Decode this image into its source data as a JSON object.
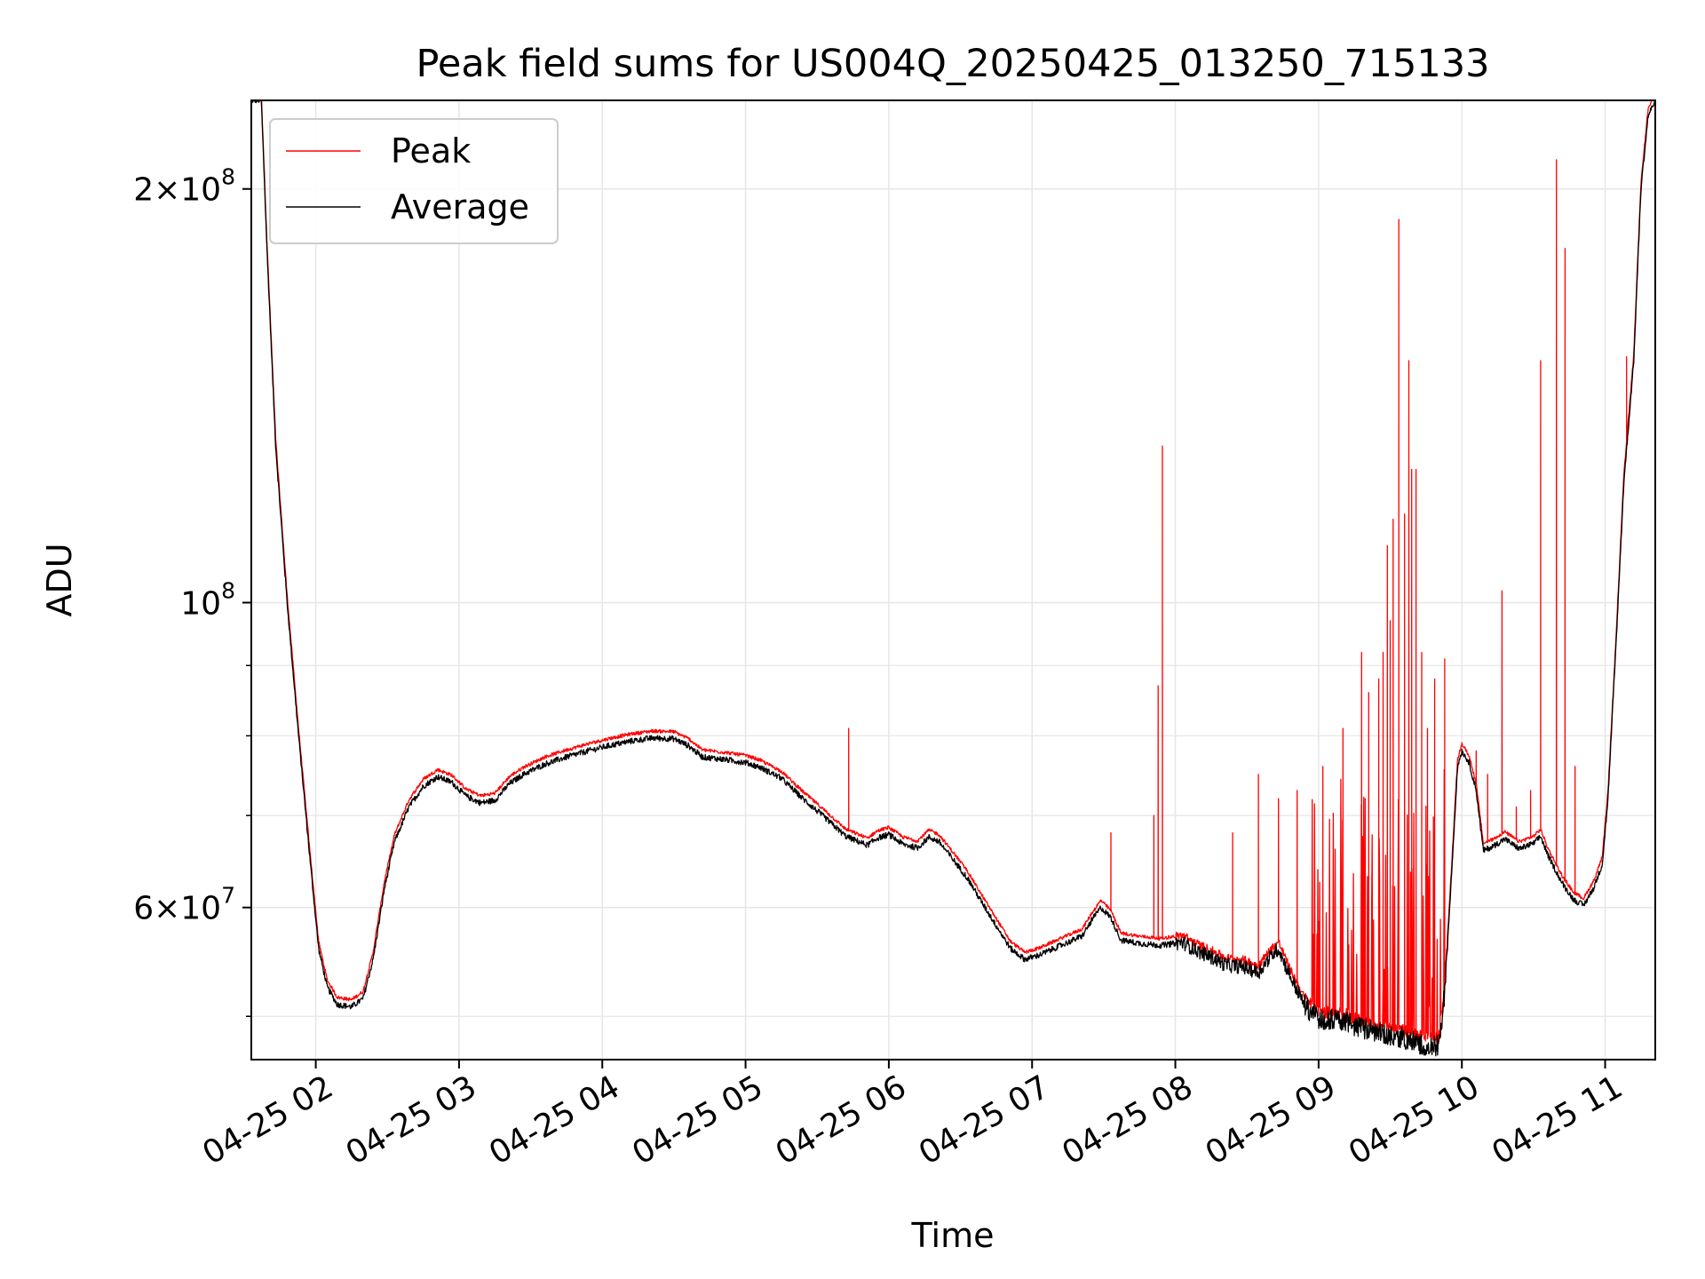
{
  "chart_data": {
    "type": "line",
    "title": "Peak field sums for US004Q_20250425_013250_715133",
    "xlabel": "Time",
    "ylabel": "ADU",
    "x_unit": "hour of 2025-04-25",
    "xlim": [
      1.55,
      11.35
    ],
    "ylim": [
      46500000,
      232000000
    ],
    "yscale": "log",
    "grid": true,
    "x_ticks": [
      {
        "value": 2,
        "label": "04-25 02"
      },
      {
        "value": 3,
        "label": "04-25 03"
      },
      {
        "value": 4,
        "label": "04-25 04"
      },
      {
        "value": 5,
        "label": "04-25 05"
      },
      {
        "value": 6,
        "label": "04-25 06"
      },
      {
        "value": 7,
        "label": "04-25 07"
      },
      {
        "value": 8,
        "label": "04-25 08"
      },
      {
        "value": 9,
        "label": "04-25 09"
      },
      {
        "value": 10,
        "label": "04-25 10"
      },
      {
        "value": 11,
        "label": "04-25 11"
      }
    ],
    "y_major_ticks": [
      {
        "value": 60000000,
        "base": "6",
        "exp": "7"
      },
      {
        "value": 100000000,
        "base": "10",
        "exp": "8"
      },
      {
        "value": 200000000,
        "base": "2",
        "exp": "8"
      }
    ],
    "y_minor_ticks": [
      50000000,
      70000000,
      80000000,
      90000000
    ],
    "legend": {
      "position": "upper-left",
      "entries": [
        "Peak",
        "Average"
      ]
    },
    "series": [
      {
        "name": "Average",
        "color": "#000000",
        "points": [
          [
            1.55,
            232000000
          ],
          [
            1.62,
            232000000
          ],
          [
            1.66,
            180000000
          ],
          [
            1.72,
            130000000
          ],
          [
            1.8,
            100000000
          ],
          [
            1.88,
            80000000
          ],
          [
            1.96,
            65000000
          ],
          [
            2.02,
            56000000
          ],
          [
            2.08,
            52500000
          ],
          [
            2.15,
            51000000
          ],
          [
            2.25,
            50800000
          ],
          [
            2.33,
            51500000
          ],
          [
            2.4,
            55000000
          ],
          [
            2.48,
            62000000
          ],
          [
            2.55,
            67000000
          ],
          [
            2.65,
            71000000
          ],
          [
            2.75,
            73500000
          ],
          [
            2.85,
            74700000
          ],
          [
            2.95,
            74000000
          ],
          [
            3.05,
            72300000
          ],
          [
            3.15,
            71500000
          ],
          [
            3.25,
            71800000
          ],
          [
            3.35,
            73800000
          ],
          [
            3.45,
            75000000
          ],
          [
            3.6,
            76300000
          ],
          [
            3.75,
            77200000
          ],
          [
            3.9,
            78000000
          ],
          [
            4.05,
            78700000
          ],
          [
            4.2,
            79300000
          ],
          [
            4.35,
            79700000
          ],
          [
            4.5,
            79600000
          ],
          [
            4.6,
            78700000
          ],
          [
            4.7,
            77200000
          ],
          [
            4.85,
            76900000
          ],
          [
            5.0,
            76500000
          ],
          [
            5.1,
            75900000
          ],
          [
            5.25,
            74500000
          ],
          [
            5.4,
            72000000
          ],
          [
            5.55,
            69800000
          ],
          [
            5.7,
            67600000
          ],
          [
            5.85,
            66600000
          ],
          [
            5.92,
            67400000
          ],
          [
            6.0,
            67800000
          ],
          [
            6.1,
            66700000
          ],
          [
            6.2,
            66300000
          ],
          [
            6.28,
            67500000
          ],
          [
            6.35,
            67000000
          ],
          [
            6.45,
            65000000
          ],
          [
            6.55,
            63000000
          ],
          [
            6.65,
            60500000
          ],
          [
            6.75,
            58200000
          ],
          [
            6.85,
            56000000
          ],
          [
            6.95,
            55000000
          ],
          [
            7.05,
            55400000
          ],
          [
            7.2,
            56300000
          ],
          [
            7.35,
            57200000
          ],
          [
            7.42,
            58800000
          ],
          [
            7.48,
            60000000
          ],
          [
            7.55,
            59000000
          ],
          [
            7.62,
            56800000
          ],
          [
            7.75,
            56500000
          ],
          [
            7.9,
            56300000
          ],
          [
            8.05,
            56600000
          ],
          [
            8.15,
            55800000
          ],
          [
            8.25,
            55200000
          ],
          [
            8.35,
            54500000
          ],
          [
            8.48,
            54300000
          ],
          [
            8.58,
            53800000
          ],
          [
            8.66,
            55200000
          ],
          [
            8.72,
            56000000
          ],
          [
            8.8,
            53500000
          ],
          [
            8.9,
            51000000
          ],
          [
            9.0,
            49700000
          ],
          [
            9.1,
            49800000
          ],
          [
            9.2,
            49500000
          ],
          [
            9.3,
            49000000
          ],
          [
            9.4,
            48800000
          ],
          [
            9.5,
            48500000
          ],
          [
            9.6,
            48200000
          ],
          [
            9.7,
            47800000
          ],
          [
            9.78,
            47500000
          ],
          [
            9.84,
            47600000
          ],
          [
            9.88,
            52000000
          ],
          [
            9.93,
            64000000
          ],
          [
            9.97,
            76000000
          ],
          [
            10.0,
            78000000
          ],
          [
            10.05,
            76500000
          ],
          [
            10.1,
            73000000
          ],
          [
            10.15,
            66000000
          ],
          [
            10.22,
            66500000
          ],
          [
            10.3,
            67300000
          ],
          [
            10.4,
            66200000
          ],
          [
            10.5,
            66800000
          ],
          [
            10.55,
            67600000
          ],
          [
            10.6,
            65500000
          ],
          [
            10.7,
            62500000
          ],
          [
            10.78,
            60800000
          ],
          [
            10.85,
            60200000
          ],
          [
            10.92,
            62000000
          ],
          [
            10.98,
            64500000
          ],
          [
            11.02,
            72000000
          ],
          [
            11.08,
            95000000
          ],
          [
            11.13,
            122000000
          ],
          [
            11.2,
            150000000
          ],
          [
            11.25,
            200000000
          ],
          [
            11.3,
            226000000
          ],
          [
            11.35,
            232000000
          ]
        ]
      },
      {
        "name": "Peak",
        "color": "#ff0000",
        "offset_factor": 1.012,
        "spikes": [
          [
            5.72,
            81000000
          ],
          [
            7.55,
            68000000
          ],
          [
            7.85,
            70000000
          ],
          [
            7.88,
            87000000
          ],
          [
            7.91,
            130000000
          ],
          [
            8.4,
            68000000
          ],
          [
            8.58,
            75000000
          ],
          [
            8.72,
            72000000
          ],
          [
            8.85,
            73000000
          ],
          [
            9.03,
            76000000
          ],
          [
            9.17,
            81000000
          ],
          [
            9.3,
            92000000
          ],
          [
            9.35,
            86000000
          ],
          [
            9.42,
            88000000
          ],
          [
            9.45,
            92000000
          ],
          [
            9.48,
            110000000
          ],
          [
            9.5,
            97000000
          ],
          [
            9.52,
            115000000
          ],
          [
            9.56,
            190000000
          ],
          [
            9.6,
            116000000
          ],
          [
            9.63,
            150000000
          ],
          [
            9.65,
            125000000
          ],
          [
            9.68,
            125000000
          ],
          [
            9.72,
            92000000
          ],
          [
            9.76,
            81000000
          ],
          [
            9.81,
            88000000
          ],
          [
            9.88,
            91000000
          ],
          [
            10.1,
            78000000
          ],
          [
            10.18,
            75000000
          ],
          [
            10.28,
            102000000
          ],
          [
            10.38,
            71000000
          ],
          [
            10.48,
            73000000
          ],
          [
            10.55,
            150000000
          ],
          [
            10.66,
            210000000
          ],
          [
            10.72,
            181000000
          ],
          [
            10.79,
            76000000
          ],
          [
            11.15,
            151000000
          ]
        ]
      }
    ]
  }
}
